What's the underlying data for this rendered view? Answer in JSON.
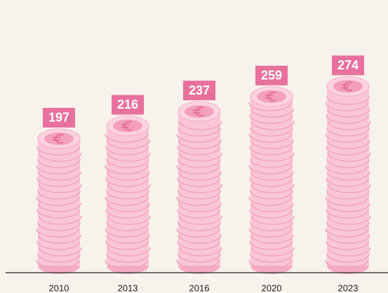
{
  "chart_data": {
    "type": "coin-stack",
    "categories": [
      "2010",
      "2013",
      "2016",
      "2020",
      "2023"
    ],
    "values": [
      197,
      216,
      237,
      259,
      274
    ],
    "color": "#f9c6d6",
    "label_color": "#e8709c"
  }
}
